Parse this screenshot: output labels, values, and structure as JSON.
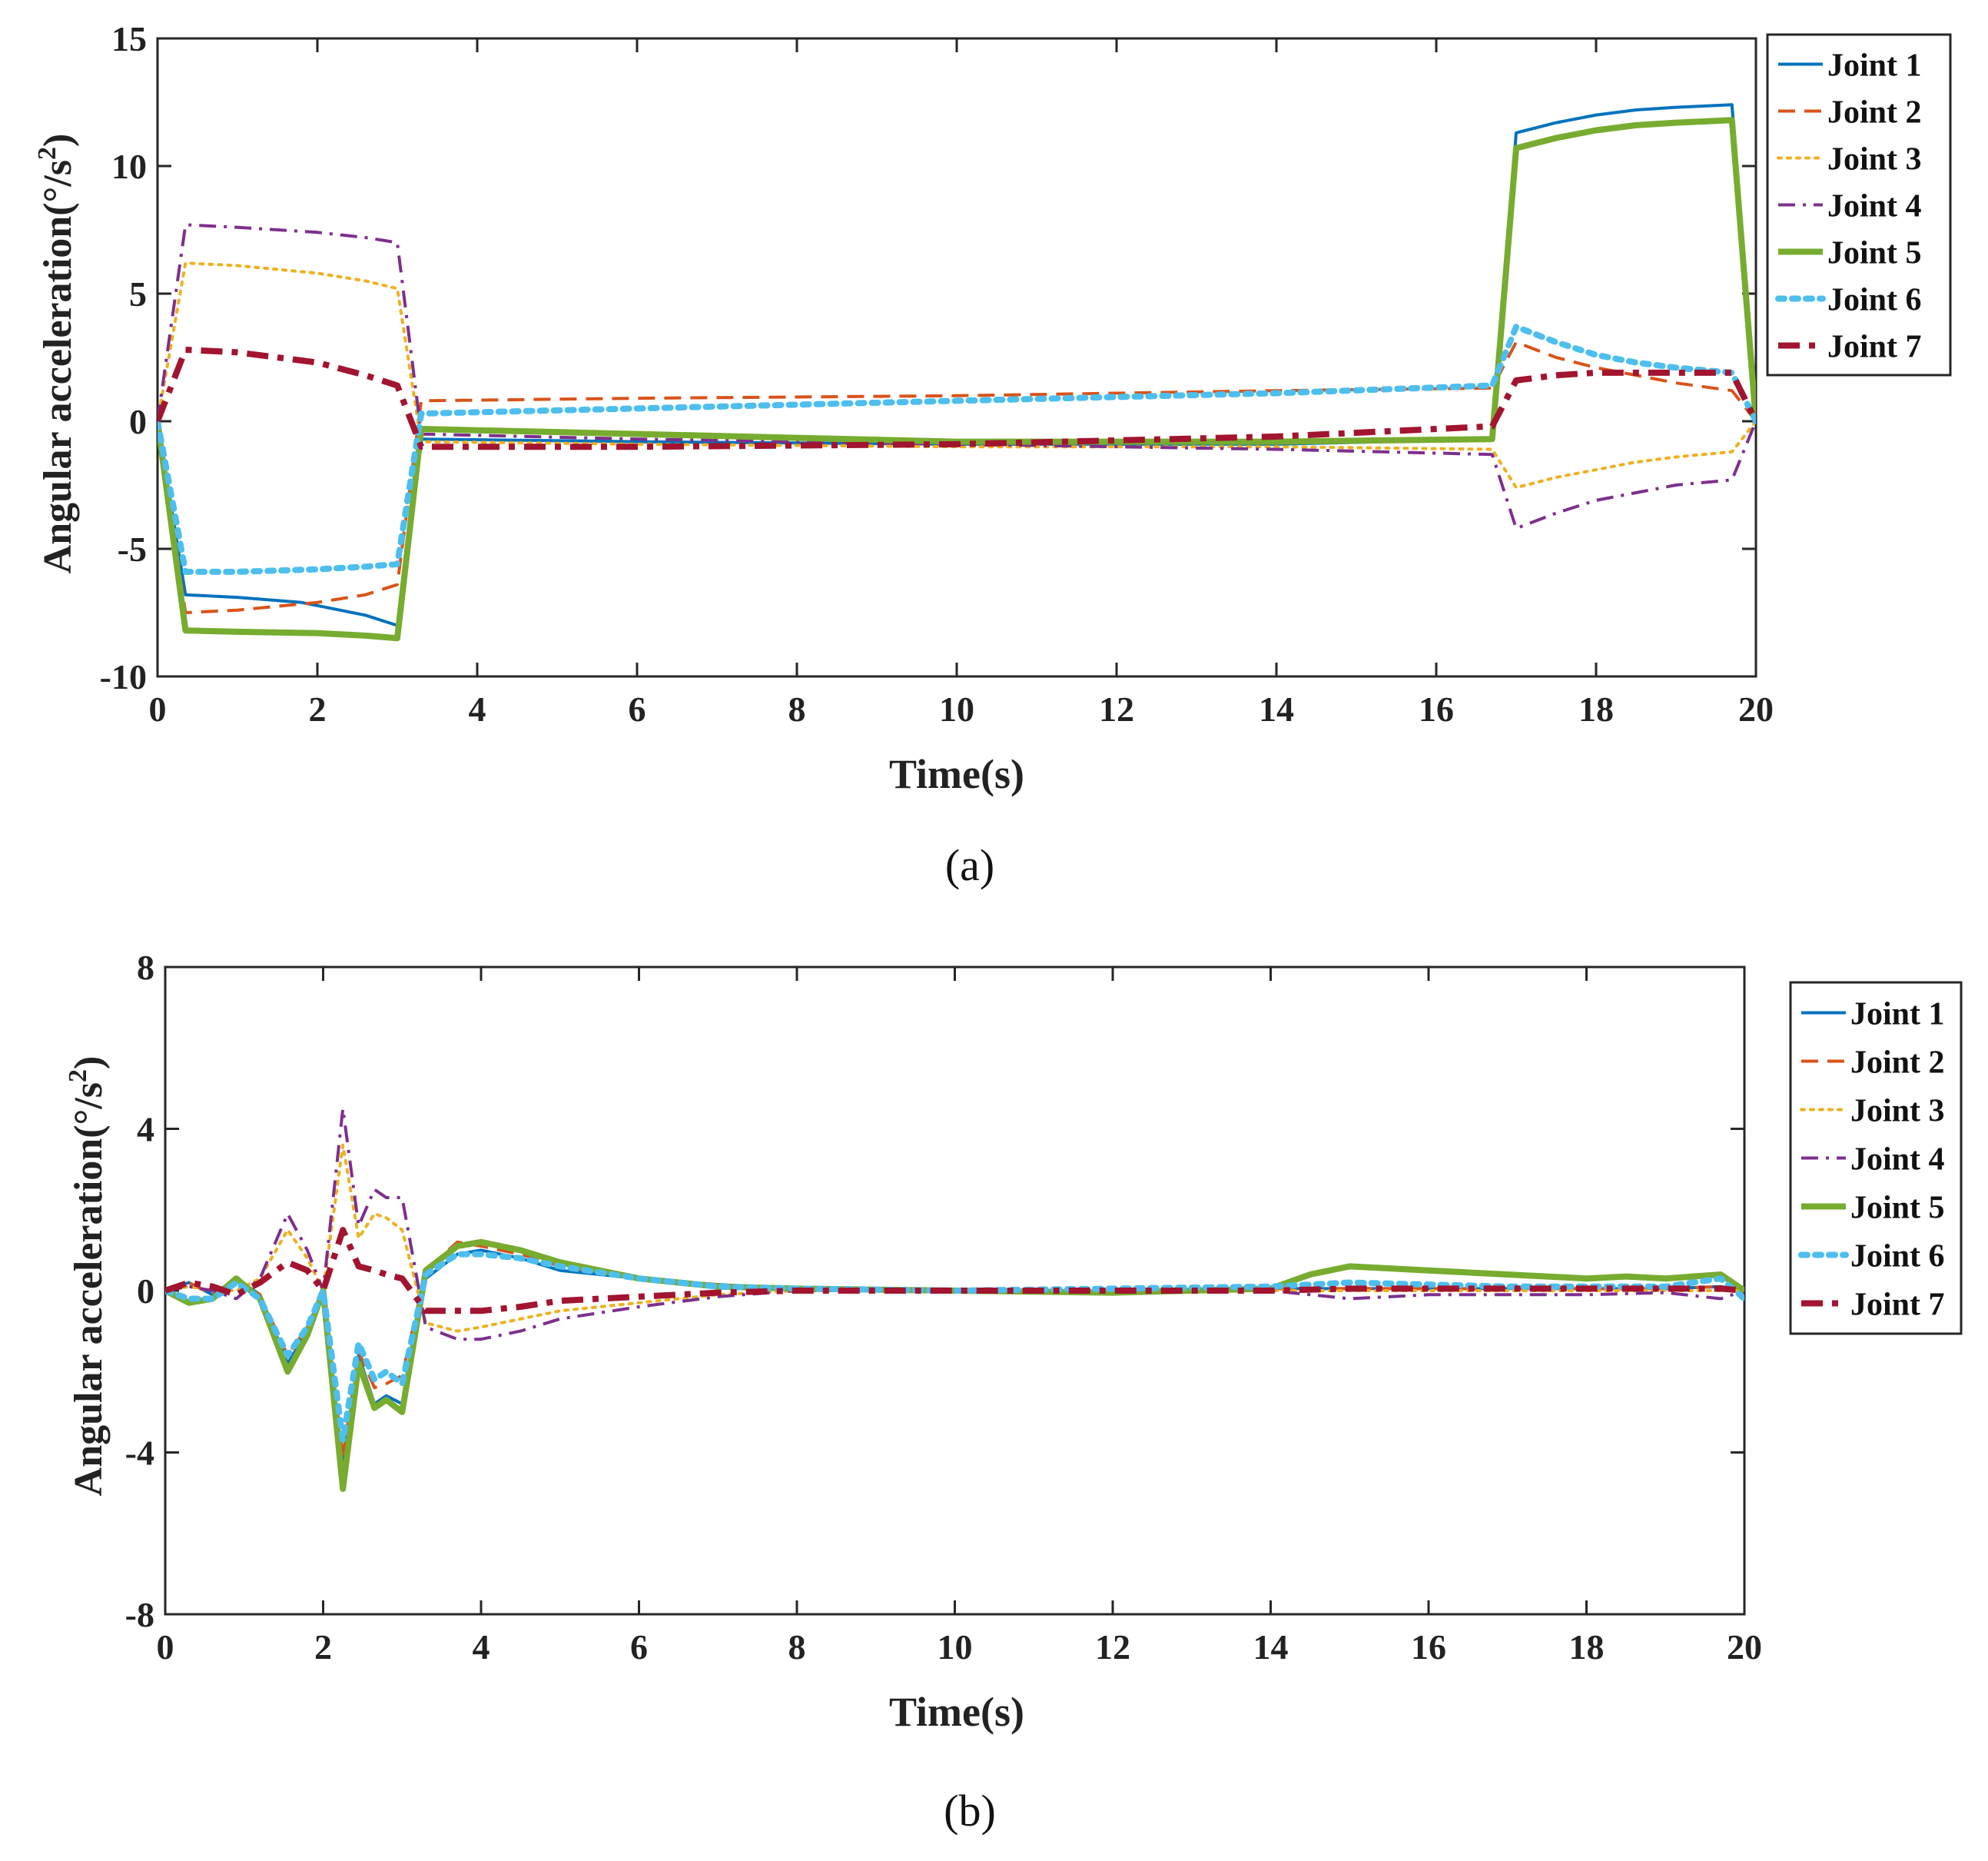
{
  "figure": {
    "panels": [
      "(a)",
      "(b)"
    ]
  },
  "chart_data": [
    {
      "type": "line",
      "panel": "a",
      "title": "",
      "xlabel": "Time(s)",
      "ylabel": "Angular acceleration(°/s²)",
      "ylabel_base": "Angular acceleration(°/s",
      "ylabel_sup": "2",
      "ylabel_tail": ")",
      "xlim": [
        0,
        20
      ],
      "ylim": [
        -10,
        15
      ],
      "xticks": [
        0,
        2,
        4,
        6,
        8,
        10,
        12,
        14,
        16,
        18,
        20
      ],
      "yticks": [
        -10,
        -5,
        0,
        5,
        10,
        15
      ],
      "legend_position": "top-right outside",
      "series": [
        {
          "name": "Joint 1",
          "color": "#0072BD",
          "style": "solid",
          "width": 4,
          "x": [
            0,
            0.35,
            1.0,
            1.8,
            2.6,
            3.0,
            3.3,
            6,
            10,
            14,
            16.7,
            17.0,
            17.5,
            18,
            18.5,
            19,
            19.7,
            20
          ],
          "y": [
            0,
            -6.8,
            -6.9,
            -7.1,
            -7.6,
            -8.0,
            -0.7,
            -0.8,
            -0.9,
            -0.9,
            -0.7,
            11.3,
            11.7,
            12.0,
            12.2,
            12.3,
            12.4,
            0
          ]
        },
        {
          "name": "Joint 2",
          "color": "#D95319",
          "style": "dash",
          "width": 4,
          "x": [
            0,
            0.35,
            1.0,
            2.0,
            2.6,
            3.0,
            3.3,
            6,
            10,
            14,
            16.7,
            17.0,
            17.5,
            18,
            18.5,
            19,
            19.7,
            20
          ],
          "y": [
            0,
            -7.5,
            -7.4,
            -7.1,
            -6.8,
            -6.4,
            0.8,
            0.9,
            1.0,
            1.2,
            1.3,
            3.1,
            2.5,
            2.1,
            1.8,
            1.5,
            1.2,
            0
          ]
        },
        {
          "name": "Joint 3",
          "color": "#EDB120",
          "style": "dot",
          "width": 4,
          "x": [
            0,
            0.35,
            1.0,
            2.0,
            2.6,
            3.0,
            3.3,
            6,
            10,
            14,
            16.7,
            17.0,
            17.5,
            18,
            18.5,
            19,
            19.7,
            20
          ],
          "y": [
            0,
            6.2,
            6.1,
            5.8,
            5.5,
            5.2,
            -0.8,
            -0.9,
            -1.0,
            -1.0,
            -1.1,
            -2.6,
            -2.2,
            -1.9,
            -1.6,
            -1.4,
            -1.2,
            0
          ]
        },
        {
          "name": "Joint 4",
          "color": "#7E2F8E",
          "style": "dashdot",
          "width": 4,
          "x": [
            0,
            0.35,
            1.0,
            2.0,
            2.6,
            3.0,
            3.3,
            6,
            10,
            14,
            16.7,
            17.0,
            17.5,
            18,
            18.5,
            19,
            19.7,
            20
          ],
          "y": [
            0,
            7.7,
            7.6,
            7.4,
            7.2,
            7.0,
            -0.5,
            -0.7,
            -0.9,
            -1.1,
            -1.3,
            -4.2,
            -3.6,
            -3.1,
            -2.8,
            -2.5,
            -2.3,
            0
          ]
        },
        {
          "name": "Joint 5",
          "color": "#77AC30",
          "style": "solid",
          "width": 8,
          "x": [
            0,
            0.35,
            1.0,
            2.0,
            2.6,
            3.0,
            3.3,
            6,
            10,
            14,
            16.7,
            17.0,
            17.5,
            18,
            18.5,
            19,
            19.7,
            20
          ],
          "y": [
            0,
            -8.2,
            -8.25,
            -8.3,
            -8.4,
            -8.5,
            -0.3,
            -0.5,
            -0.8,
            -0.8,
            -0.7,
            10.7,
            11.1,
            11.4,
            11.6,
            11.7,
            11.8,
            0
          ]
        },
        {
          "name": "Joint 6",
          "color": "#4DBEEE",
          "style": "dotthick",
          "width": 8,
          "x": [
            0,
            0.35,
            1.0,
            2.0,
            2.6,
            3.0,
            3.3,
            6,
            10,
            14,
            16.7,
            17.0,
            17.5,
            18,
            18.5,
            19,
            19.7,
            20
          ],
          "y": [
            0,
            -5.9,
            -5.9,
            -5.8,
            -5.7,
            -5.6,
            0.3,
            0.5,
            0.8,
            1.1,
            1.4,
            3.7,
            3.1,
            2.6,
            2.3,
            2.1,
            1.9,
            0
          ]
        },
        {
          "name": "Joint 7",
          "color": "#A2142F",
          "style": "dashdotthick",
          "width": 8,
          "x": [
            0,
            0.35,
            1.0,
            2.0,
            2.6,
            3.0,
            3.3,
            6,
            10,
            14,
            16.7,
            17.0,
            17.5,
            18,
            18.5,
            19,
            19.7,
            20
          ],
          "y": [
            0,
            2.8,
            2.7,
            2.3,
            1.8,
            1.4,
            -1.0,
            -1.0,
            -0.9,
            -0.6,
            -0.2,
            1.6,
            1.8,
            1.9,
            1.9,
            1.9,
            1.9,
            0
          ]
        }
      ]
    },
    {
      "type": "line",
      "panel": "b",
      "title": "",
      "xlabel": "Time(s)",
      "ylabel": "Angular acceleration(°/s²)",
      "ylabel_base": "Angular acceleration(°/s",
      "ylabel_sup": "2",
      "ylabel_tail": ")",
      "xlim": [
        0,
        20
      ],
      "ylim": [
        -8,
        8
      ],
      "xticks": [
        0,
        2,
        4,
        6,
        8,
        10,
        12,
        14,
        16,
        18,
        20
      ],
      "yticks": [
        -8,
        -4,
        0,
        4,
        8
      ],
      "legend_position": "right outside",
      "series": [
        {
          "name": "Joint 1",
          "color": "#0072BD",
          "style": "solid",
          "width": 4,
          "x": [
            0,
            0.3,
            0.6,
            0.9,
            1.2,
            1.55,
            1.8,
            2.0,
            2.25,
            2.45,
            2.65,
            2.8,
            3.0,
            3.3,
            3.7,
            4.0,
            4.5,
            5,
            6,
            7,
            8,
            10,
            12,
            14,
            15,
            16,
            17,
            18,
            19,
            19.7,
            20
          ],
          "y": [
            0,
            0.2,
            -0.1,
            0.3,
            -0.1,
            -1.8,
            -1.0,
            0,
            -4.3,
            -1.6,
            -2.8,
            -2.6,
            -2.8,
            0.3,
            0.9,
            1.0,
            0.8,
            0.5,
            0.3,
            0.15,
            0.05,
            0,
            0,
            0.05,
            0.05,
            0.05,
            0.05,
            0.05,
            0.05,
            0.1,
            0
          ]
        },
        {
          "name": "Joint 2",
          "color": "#D95319",
          "style": "dash",
          "width": 4,
          "x": [
            0,
            0.3,
            0.6,
            0.9,
            1.2,
            1.55,
            1.8,
            2.0,
            2.25,
            2.45,
            2.65,
            2.8,
            3.0,
            3.3,
            3.7,
            4.0,
            4.5,
            5,
            6,
            7,
            8,
            10,
            12,
            14,
            15,
            16,
            17,
            18,
            19,
            19.7,
            20
          ],
          "y": [
            0,
            0.2,
            -0.1,
            0.3,
            -0.1,
            -1.6,
            -0.9,
            0,
            -4.1,
            -1.5,
            -2.4,
            -2.3,
            -2.1,
            0.5,
            1.2,
            1.1,
            0.9,
            0.6,
            0.3,
            0.15,
            0.05,
            0,
            0,
            0.05,
            0.05,
            0.05,
            0.05,
            0.05,
            0.05,
            0.1,
            0
          ]
        },
        {
          "name": "Joint 3",
          "color": "#EDB120",
          "style": "dot",
          "width": 4,
          "x": [
            0,
            0.3,
            0.6,
            0.9,
            1.2,
            1.55,
            1.8,
            2.0,
            2.25,
            2.45,
            2.65,
            2.8,
            3.0,
            3.3,
            3.7,
            4.0,
            4.5,
            5,
            6,
            7,
            8,
            10,
            12,
            14,
            15,
            16,
            17,
            18,
            19,
            19.7,
            20
          ],
          "y": [
            0,
            0.1,
            0,
            0,
            0.3,
            1.5,
            0.8,
            0,
            3.6,
            1.3,
            1.9,
            1.8,
            1.5,
            -0.8,
            -1.0,
            -0.9,
            -0.7,
            -0.5,
            -0.3,
            -0.1,
            0,
            0,
            0,
            0,
            0,
            0,
            0,
            0,
            0,
            0,
            0
          ]
        },
        {
          "name": "Joint 4",
          "color": "#7E2F8E",
          "style": "dashdot",
          "width": 4,
          "x": [
            0,
            0.3,
            0.6,
            0.9,
            1.2,
            1.55,
            1.8,
            2.0,
            2.25,
            2.45,
            2.65,
            2.8,
            3.0,
            3.3,
            3.7,
            4.0,
            4.5,
            5,
            6,
            7,
            8,
            10,
            12,
            14,
            15,
            16,
            17,
            18,
            19,
            19.7,
            20
          ],
          "y": [
            0,
            0.1,
            0,
            -0.2,
            0.3,
            1.9,
            1.0,
            0,
            4.5,
            1.6,
            2.5,
            2.3,
            2.3,
            -0.9,
            -1.2,
            -1.2,
            -1.0,
            -0.7,
            -0.4,
            -0.15,
            0,
            0,
            0,
            0,
            -0.2,
            -0.1,
            -0.1,
            -0.1,
            -0.05,
            -0.2,
            0
          ]
        },
        {
          "name": "Joint 5",
          "color": "#77AC30",
          "style": "solid",
          "width": 8,
          "x": [
            0,
            0.3,
            0.6,
            0.9,
            1.2,
            1.55,
            1.8,
            2.0,
            2.25,
            2.45,
            2.65,
            2.8,
            3.0,
            3.3,
            3.7,
            4.0,
            4.5,
            5,
            6,
            7,
            8,
            10,
            12,
            14,
            14.5,
            15,
            16,
            17,
            18,
            18.5,
            19,
            19.7,
            20
          ],
          "y": [
            0,
            -0.3,
            -0.2,
            0.3,
            -0.2,
            -2.0,
            -1.1,
            0,
            -4.9,
            -1.8,
            -2.9,
            -2.7,
            -3.0,
            0.5,
            1.1,
            1.2,
            1.0,
            0.7,
            0.3,
            0.1,
            0.05,
            0,
            -0.05,
            0.05,
            0.4,
            0.6,
            0.5,
            0.4,
            0.3,
            0.35,
            0.3,
            0.4,
            0
          ]
        },
        {
          "name": "Joint 6",
          "color": "#4DBEEE",
          "style": "dotthick",
          "width": 8,
          "x": [
            0,
            0.3,
            0.6,
            0.9,
            1.2,
            1.55,
            1.8,
            2.0,
            2.25,
            2.45,
            2.65,
            2.8,
            3.0,
            3.3,
            3.7,
            4.0,
            4.5,
            5,
            6,
            7,
            8,
            10,
            12,
            14,
            15,
            16,
            17,
            18,
            19,
            19.7,
            20
          ],
          "y": [
            0,
            -0.2,
            -0.2,
            0.2,
            -0.2,
            -1.6,
            -0.9,
            0,
            -3.7,
            -1.3,
            -2.2,
            -2.0,
            -2.3,
            0.4,
            0.9,
            0.9,
            0.8,
            0.6,
            0.3,
            0.1,
            0.05,
            0,
            0.05,
            0.1,
            0.2,
            0.15,
            0.1,
            0.1,
            0.1,
            0.3,
            -0.2
          ]
        },
        {
          "name": "Joint 7",
          "color": "#A2142F",
          "style": "dashdotthick",
          "width": 8,
          "x": [
            0,
            0.3,
            0.6,
            0.9,
            1.2,
            1.55,
            1.8,
            2.0,
            2.25,
            2.45,
            2.65,
            2.8,
            3.0,
            3.3,
            3.7,
            4.0,
            4.5,
            5,
            6,
            7,
            8,
            10,
            12,
            14,
            15,
            16,
            17,
            18,
            19,
            19.7,
            20
          ],
          "y": [
            0,
            0.2,
            0.1,
            -0.1,
            0.2,
            0.7,
            0.5,
            0,
            1.5,
            0.6,
            0.5,
            0.4,
            0.3,
            -0.5,
            -0.5,
            -0.5,
            -0.4,
            -0.25,
            -0.15,
            -0.05,
            0,
            0,
            0,
            0,
            0.05,
            0.05,
            0.05,
            0.05,
            0.05,
            0.05,
            0
          ]
        }
      ]
    }
  ]
}
